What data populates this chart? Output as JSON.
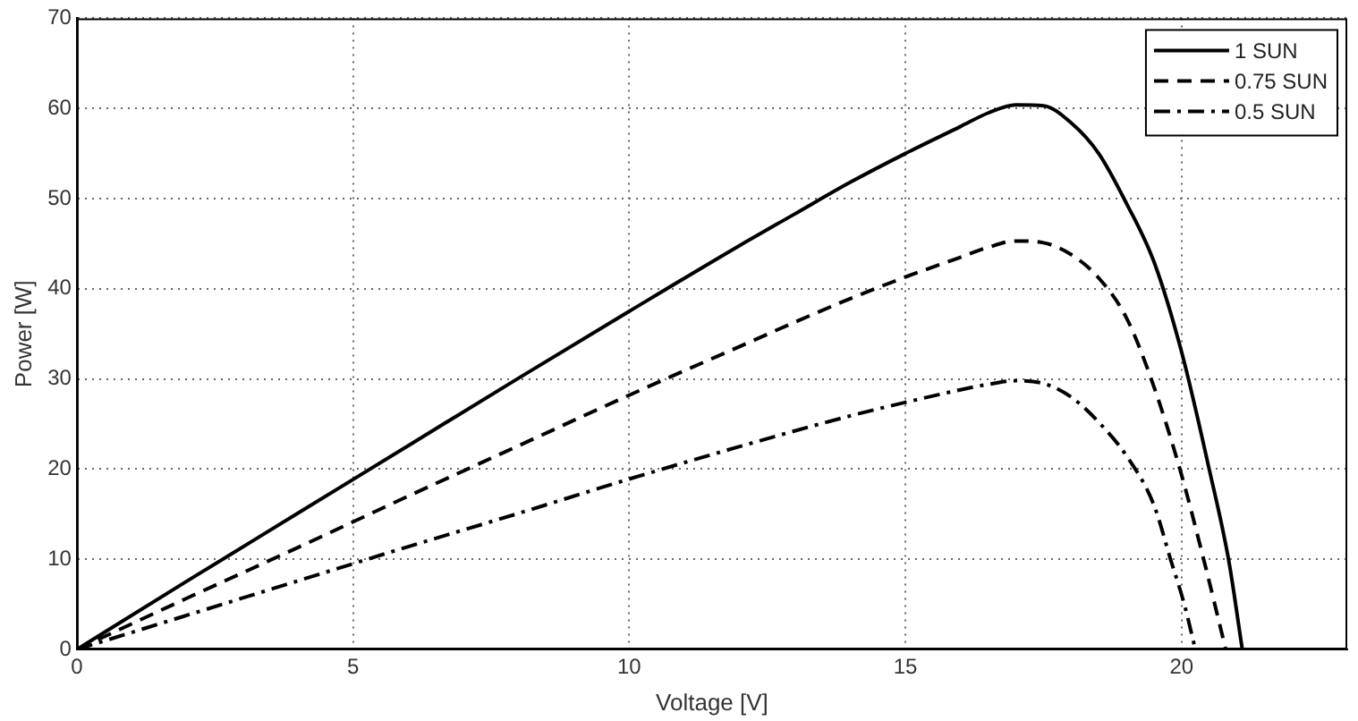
{
  "chart_data": {
    "type": "line",
    "xlabel": "Voltage [V]",
    "ylabel": "Power [W]",
    "xlim": [
      0,
      23
    ],
    "xticks": [
      0,
      5,
      10,
      15,
      20
    ],
    "ylim": [
      0,
      70
    ],
    "yticks": [
      0,
      10,
      20,
      30,
      40,
      50,
      60,
      70
    ],
    "grid": true,
    "legend": "top right",
    "marker": "none",
    "series": [
      {
        "name": "1 SUN",
        "color": "#000000",
        "line_style": "solid",
        "x": [
          0,
          2,
          4,
          6,
          8,
          10,
          12,
          13,
          14,
          15,
          16,
          16.5,
          17,
          17.5,
          18,
          18.5,
          19,
          19.5,
          20,
          20.5,
          20.85,
          21.1
        ],
        "values": [
          0,
          7.6,
          15.1,
          22.6,
          30.1,
          37.5,
          44.8,
          48.3,
          51.8,
          55,
          58,
          59.5,
          60.4,
          60.3,
          58.4,
          55,
          49.5,
          43,
          33,
          20,
          10,
          0
        ]
      },
      {
        "name": "0.75 SUN",
        "color": "#000000",
        "line_style": "dashed",
        "x": [
          0,
          2,
          4,
          6,
          8,
          10,
          12,
          13,
          14,
          15,
          16,
          16.5,
          17,
          17.5,
          18,
          18.5,
          19,
          19.45,
          19.97,
          20.4,
          20.8
        ],
        "values": [
          0,
          5.7,
          11.3,
          17,
          22.6,
          28.2,
          33.6,
          36.3,
          38.9,
          41.3,
          43.5,
          44.6,
          45.3,
          45.1,
          43.8,
          41.2,
          36.8,
          30,
          20,
          10,
          0
        ]
      },
      {
        "name": "0.5 SUN",
        "color": "#000000",
        "line_style": "dashdot",
        "x": [
          0,
          2,
          4,
          6,
          8,
          10,
          12,
          14,
          15,
          16,
          16.5,
          17,
          17.5,
          18,
          18.5,
          19,
          19.5,
          19.8,
          20.05,
          20.25
        ],
        "values": [
          0,
          3.8,
          7.6,
          11.4,
          15.1,
          18.9,
          22.5,
          25.9,
          27.4,
          28.8,
          29.4,
          29.8,
          29.5,
          28,
          25.2,
          21.5,
          16,
          10,
          5,
          0
        ]
      }
    ]
  }
}
